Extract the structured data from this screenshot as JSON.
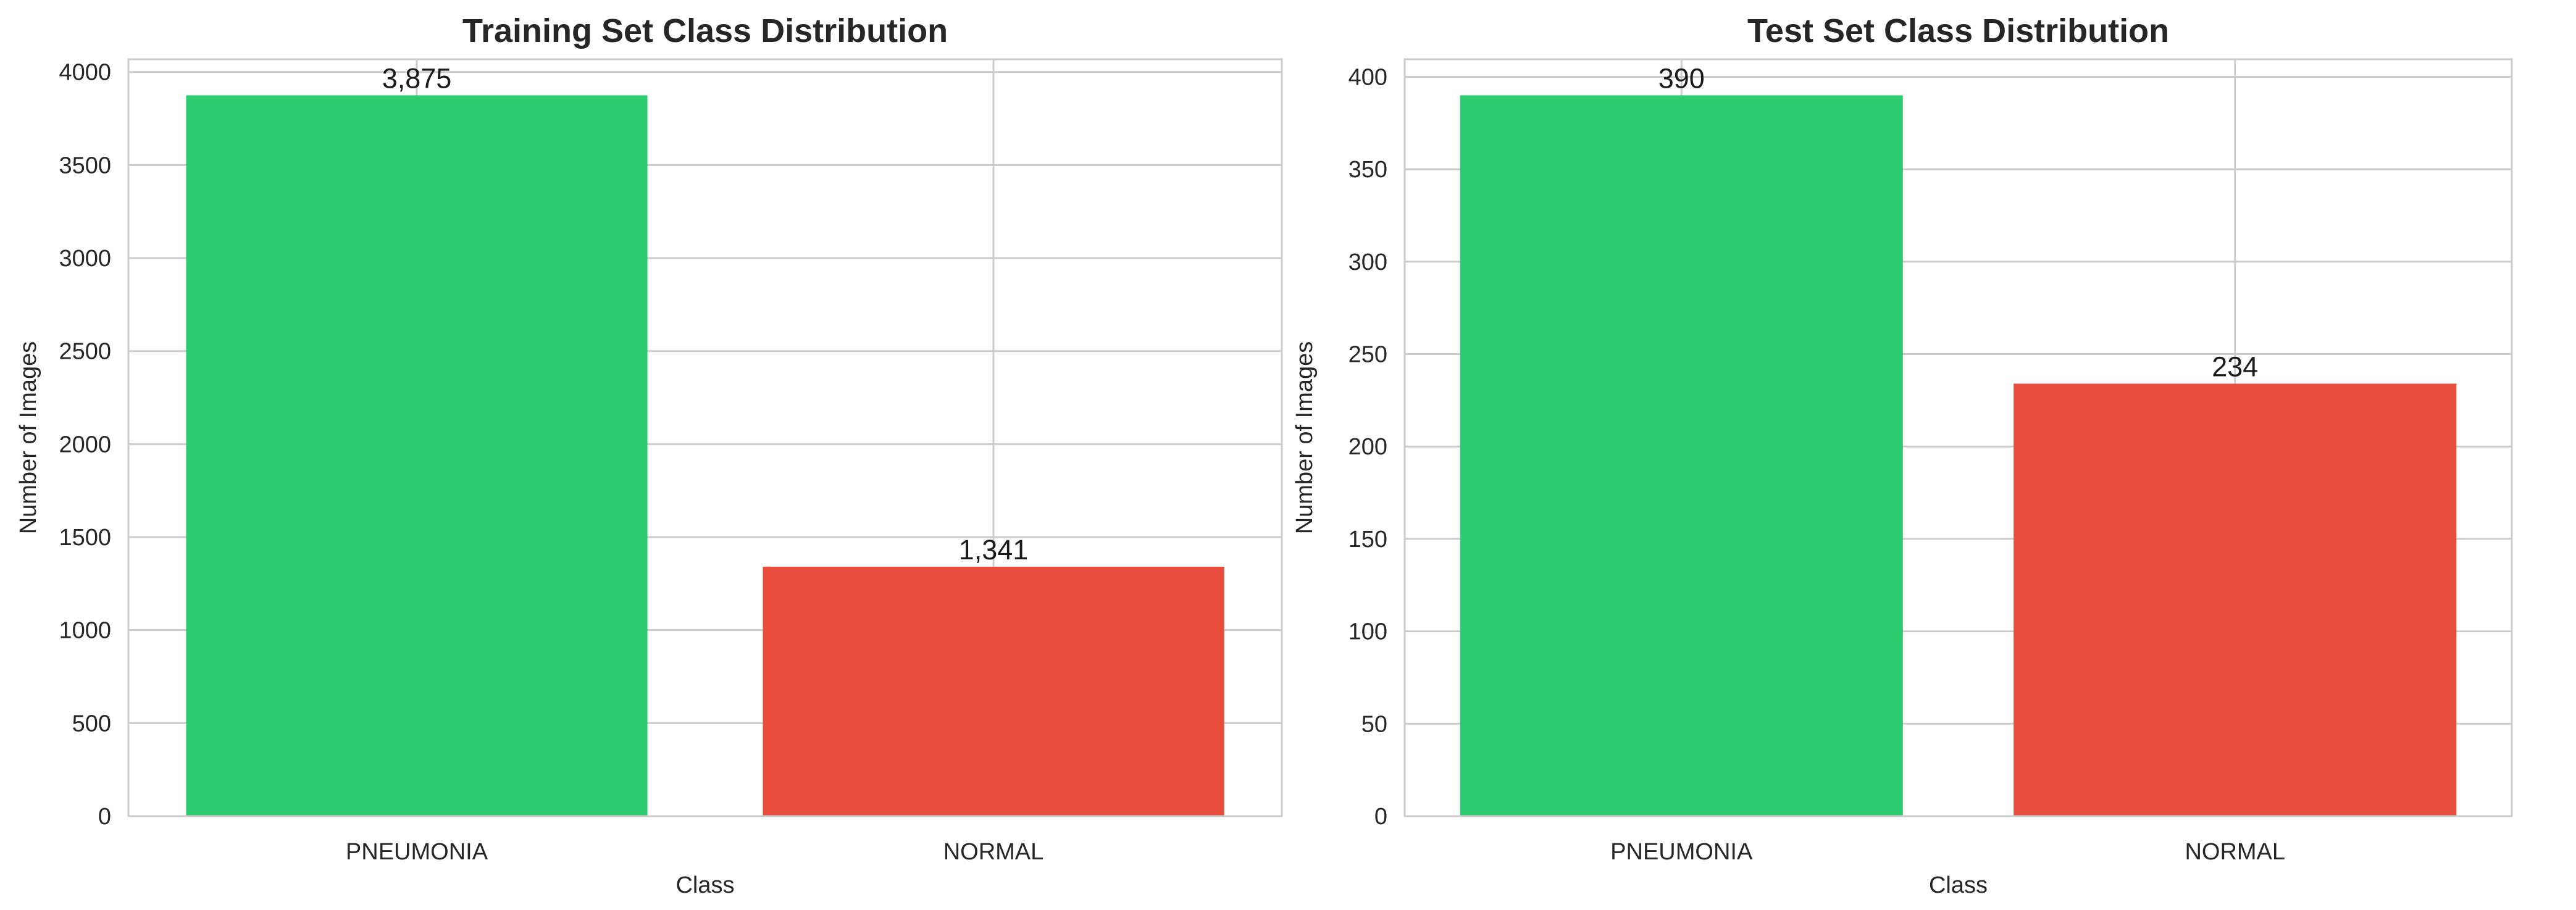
{
  "chart_data": [
    {
      "type": "bar",
      "title": "Training Set Class Distribution",
      "xlabel": "Class",
      "ylabel": "Number of Images",
      "categories": [
        "PNEUMONIA",
        "NORMAL"
      ],
      "values": [
        3875,
        1341
      ],
      "data_labels": [
        "3,875",
        "1,341"
      ],
      "colors": [
        "#2ecc71",
        "#e74c3c"
      ],
      "ylim": [
        0,
        4068.75
      ],
      "yticks": [
        0,
        500,
        1000,
        1500,
        2000,
        2500,
        3000,
        3500,
        4000
      ],
      "ytick_labels": [
        "0",
        "500",
        "1000",
        "1500",
        "2000",
        "2500",
        "3000",
        "3500",
        "4000"
      ],
      "grid": true,
      "legend": "none"
    },
    {
      "type": "bar",
      "title": "Test Set Class Distribution",
      "xlabel": "Class",
      "ylabel": "Number of Images",
      "categories": [
        "PNEUMONIA",
        "NORMAL"
      ],
      "values": [
        390,
        234
      ],
      "data_labels": [
        "390",
        "234"
      ],
      "colors": [
        "#2ecc71",
        "#e74c3c"
      ],
      "ylim": [
        0,
        409.5
      ],
      "yticks": [
        0,
        50,
        100,
        150,
        200,
        250,
        300,
        350,
        400
      ],
      "ytick_labels": [
        "0",
        "50",
        "100",
        "150",
        "200",
        "250",
        "300",
        "350",
        "400"
      ],
      "grid": true,
      "legend": "none"
    }
  ]
}
